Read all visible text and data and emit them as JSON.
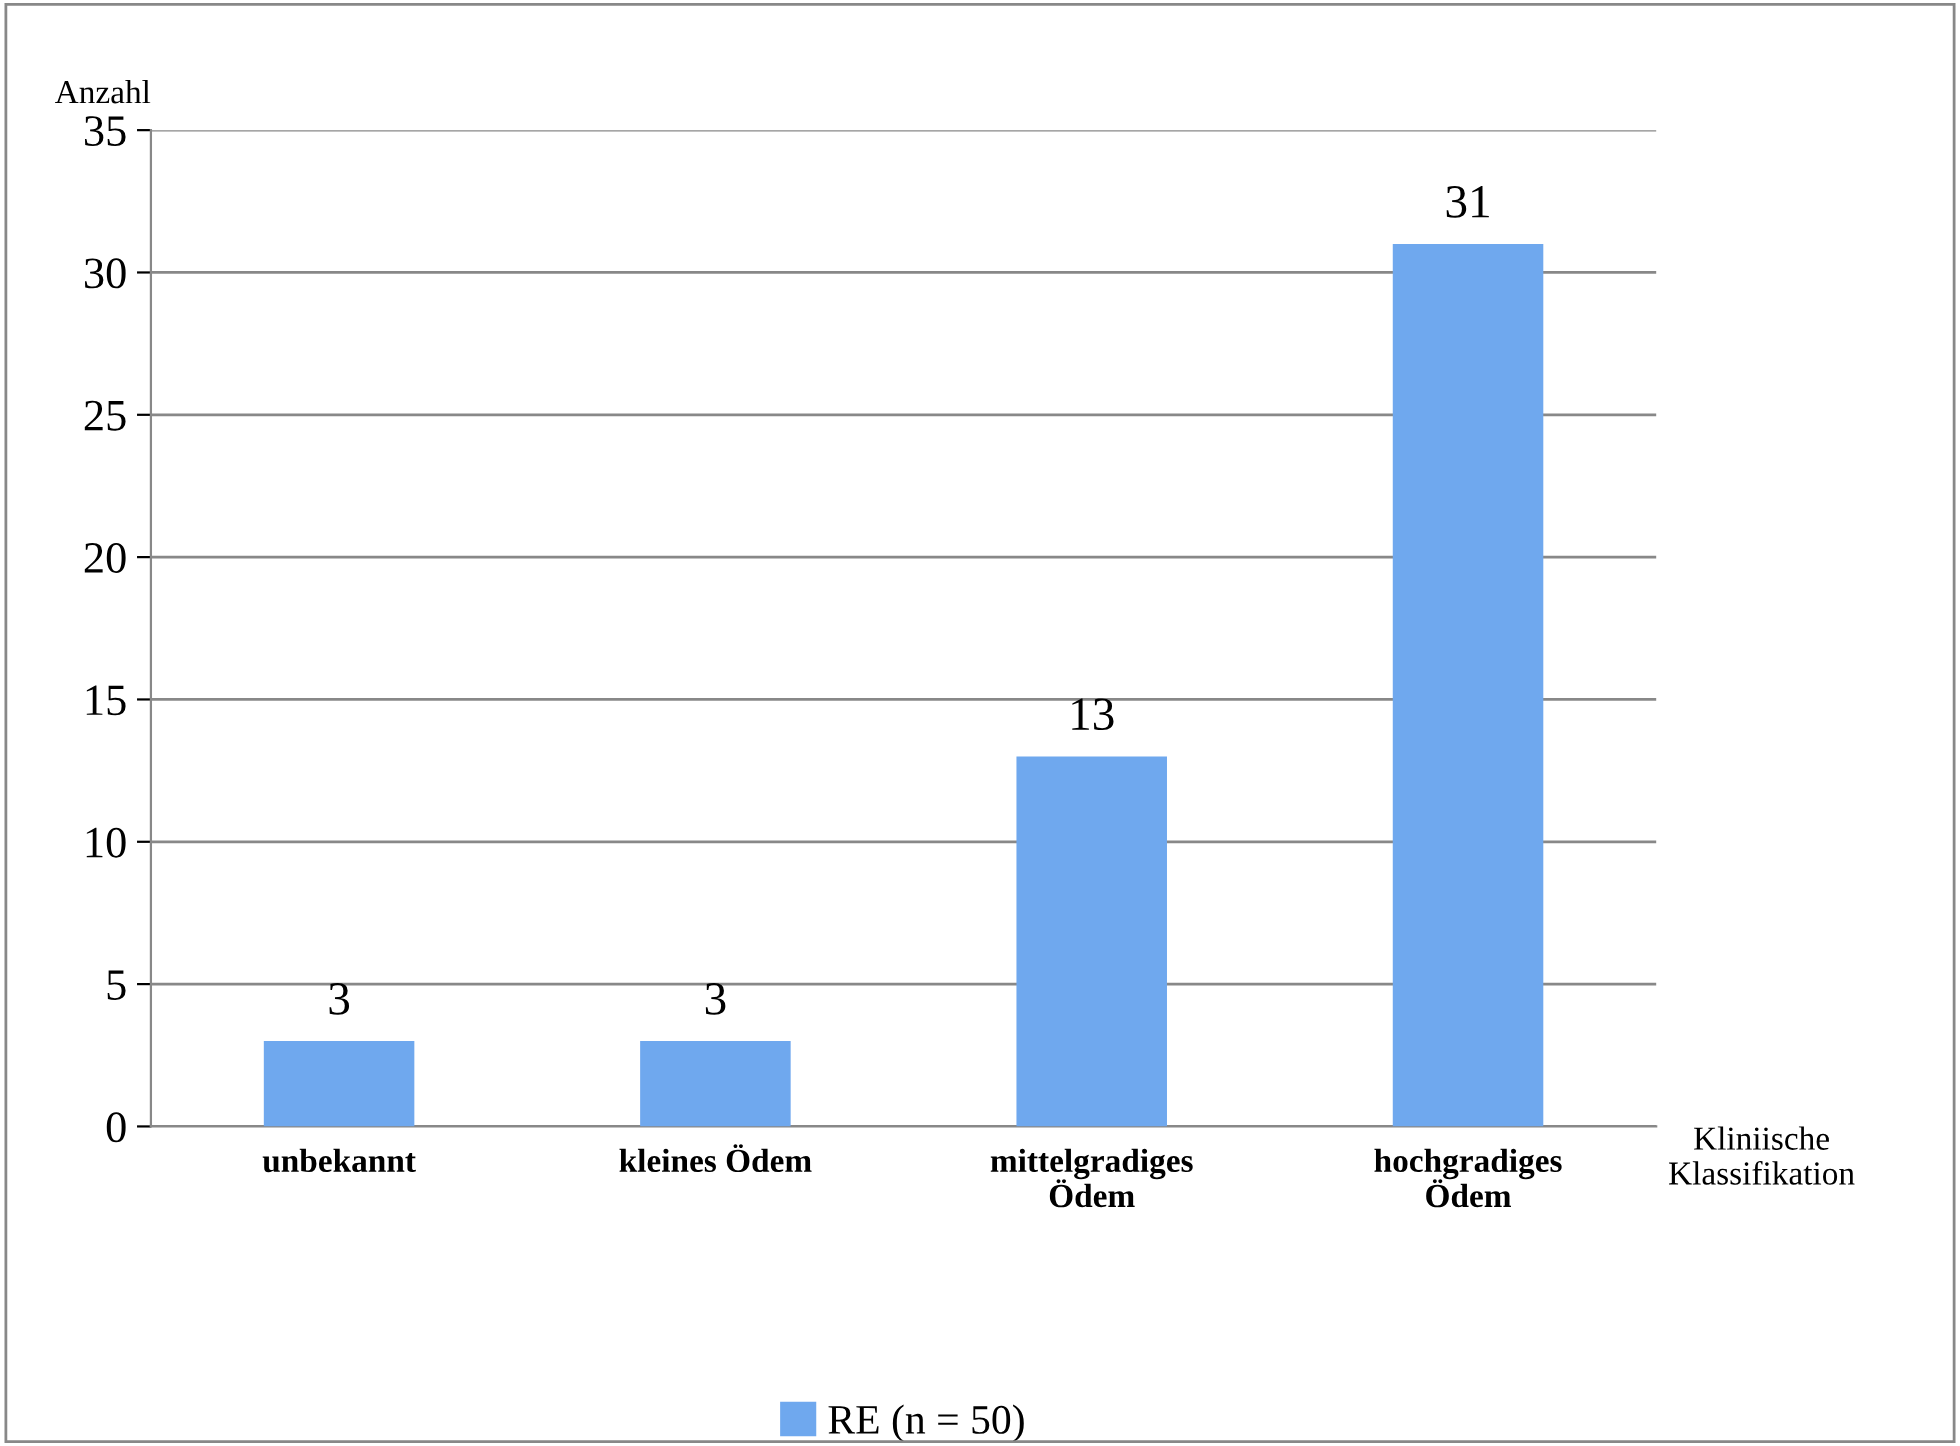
{
  "chart_data": {
    "type": "bar",
    "categories": [
      "unbekannt",
      "kleines Ödem",
      "mittelgradiges Ödem",
      "hochgradiges Ödem"
    ],
    "series": [
      {
        "name": "RE (n = 50)",
        "color": "#6fa8ee",
        "values": [
          3,
          3,
          13,
          31
        ]
      }
    ],
    "ylabel": "Anzahl",
    "xlabel": "Kliniische Klassifikation",
    "ylim": [
      0,
      35
    ],
    "yticks": [
      0,
      5,
      10,
      15,
      20,
      25,
      30,
      35
    ],
    "grid": "y",
    "legend": "bottom",
    "data_labels": true
  }
}
